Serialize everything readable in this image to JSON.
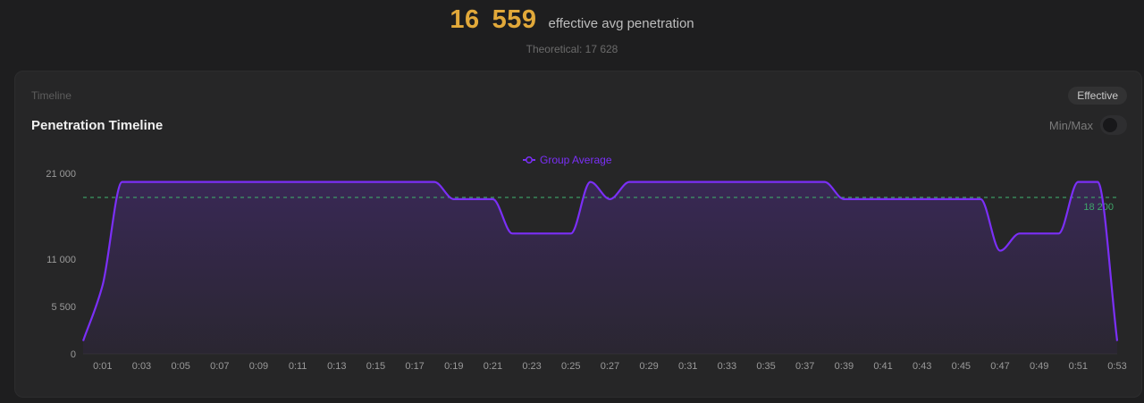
{
  "summary": {
    "value_part1": "16",
    "value_part2": "559",
    "caption": "effective avg penetration",
    "theoretical_text": "Theoretical: 17 628"
  },
  "card": {
    "kicker": "Timeline",
    "title": "Penetration Timeline",
    "mode_badge": "Effective",
    "toggle_label": "Min/Max",
    "toggle_on": false
  },
  "colors": {
    "line": "#7b2ff7",
    "reference": "#3fa66a",
    "accent": "#e2a93a"
  },
  "chart_data": {
    "type": "area",
    "legend": "Group Average",
    "legend_placement": "top-center",
    "reference_line": {
      "value": 18200,
      "label": "18 200"
    },
    "y_ticks": [
      {
        "value": 0,
        "label": "0"
      },
      {
        "value": 5500,
        "label": "5 500"
      },
      {
        "value": 11000,
        "label": "11 000"
      },
      {
        "value": 21000,
        "label": "21 000"
      }
    ],
    "ylim": [
      0,
      21000
    ],
    "x_ticks": [
      "0:01",
      "0:03",
      "0:05",
      "0:07",
      "0:09",
      "0:11",
      "0:13",
      "0:15",
      "0:17",
      "0:19",
      "0:21",
      "0:23",
      "0:25",
      "0:27",
      "0:29",
      "0:31",
      "0:33",
      "0:35",
      "0:37",
      "0:39",
      "0:41",
      "0:43",
      "0:45",
      "0:47",
      "0:49",
      "0:51",
      "0:53"
    ],
    "series": [
      {
        "name": "Group Average",
        "x": [
          "0:00",
          "0:01",
          "0:02",
          "0:03",
          "0:04",
          "0:05",
          "0:06",
          "0:07",
          "0:08",
          "0:09",
          "0:10",
          "0:11",
          "0:12",
          "0:13",
          "0:14",
          "0:15",
          "0:16",
          "0:17",
          "0:18",
          "0:19",
          "0:20",
          "0:21",
          "0:22",
          "0:23",
          "0:24",
          "0:25",
          "0:26",
          "0:27",
          "0:28",
          "0:29",
          "0:30",
          "0:31",
          "0:32",
          "0:33",
          "0:34",
          "0:35",
          "0:36",
          "0:37",
          "0:38",
          "0:39",
          "0:40",
          "0:41",
          "0:42",
          "0:43",
          "0:44",
          "0:45",
          "0:46",
          "0:47",
          "0:48",
          "0:49",
          "0:50",
          "0:51",
          "0:52",
          "0:53"
        ],
        "values": [
          1500,
          8000,
          20000,
          20000,
          20000,
          20000,
          20000,
          20000,
          20000,
          20000,
          20000,
          20000,
          20000,
          20000,
          20000,
          20000,
          20000,
          20000,
          20000,
          18000,
          18000,
          18000,
          14000,
          14000,
          14000,
          14000,
          20000,
          18000,
          20000,
          20000,
          20000,
          20000,
          20000,
          20000,
          20000,
          20000,
          20000,
          20000,
          20000,
          18000,
          18000,
          18000,
          18000,
          18000,
          18000,
          18000,
          18000,
          12000,
          14000,
          14000,
          14000,
          20000,
          20000,
          1500
        ]
      }
    ]
  }
}
